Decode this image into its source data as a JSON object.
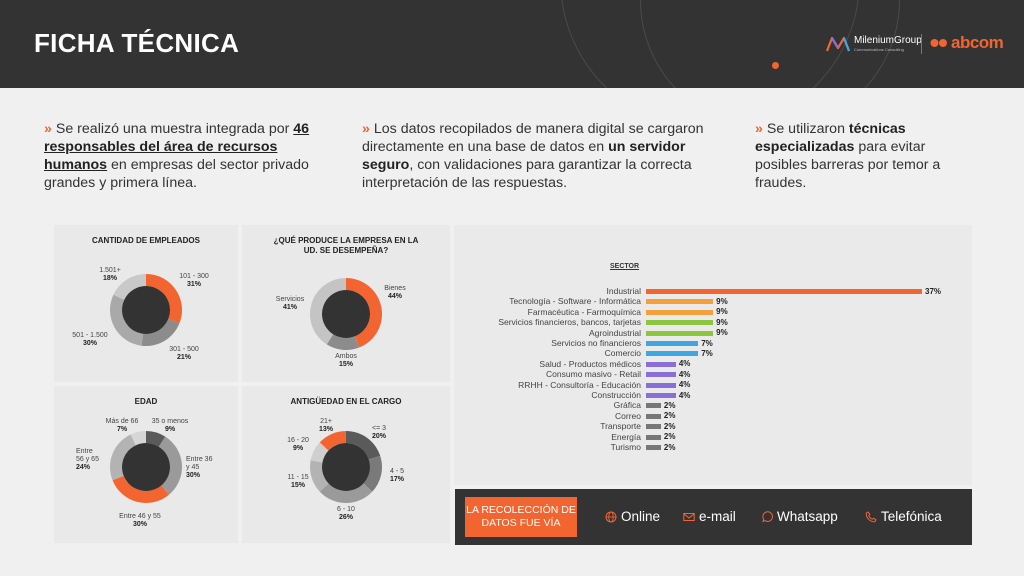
{
  "header": {
    "title": "FICHA TÉCNICA",
    "logo1_name": "MileniumGroup",
    "logo1_sub": "Communications Consulting",
    "logo2_name": "abcom"
  },
  "bullets": [
    {
      "parts": [
        {
          "t": "Se realizó una muestra integrada por ",
          "s": ""
        },
        {
          "t": "46 responsables del área de recursos humanos",
          "s": "bu"
        },
        {
          "t": " en empresas del sector privado grandes y primera línea.",
          "s": ""
        }
      ]
    },
    {
      "parts": [
        {
          "t": "Los datos recopilados de manera digital se cargaron directamente en una base de datos en ",
          "s": ""
        },
        {
          "t": "un servidor seguro",
          "s": "b"
        },
        {
          "t": ", con validaciones para garantizar la correcta interpretación de las respuestas.",
          "s": ""
        }
      ]
    },
    {
      "parts": [
        {
          "t": "Se utilizaron ",
          "s": ""
        },
        {
          "t": "técnicas especializadas",
          "s": "b"
        },
        {
          "t": " para evitar posibles barreras por temor a fraudes.",
          "s": ""
        }
      ]
    }
  ],
  "colors": {
    "accent": "#f26531",
    "dark": "#333333",
    "donut_center": "#333333"
  },
  "chart_data": [
    {
      "type": "pie",
      "title": "CANTIDAD DE EMPLEADOS",
      "slices": [
        {
          "label": "101 - 300",
          "value": 31,
          "display": "31%",
          "color": "#f26531"
        },
        {
          "label": "301 - 500",
          "value": 21,
          "display": "21%",
          "color": "#8c8c8c"
        },
        {
          "label": "501 - 1.500",
          "value": 30,
          "display": "30%",
          "color": "#a9a9a9"
        },
        {
          "label": "1.501+",
          "value": 18,
          "display": "18%",
          "color": "#c9c9c9"
        }
      ]
    },
    {
      "type": "pie",
      "title": "¿QUÉ PRODUCE LA EMPRESA EN LA UD. SE DESEMPEÑA?",
      "slices": [
        {
          "label": "Bienes",
          "value": 44,
          "display": "44%",
          "color": "#f26531"
        },
        {
          "label": "Ambos",
          "value": 15,
          "display": "15%",
          "color": "#8c8c8c"
        },
        {
          "label": "Servicios",
          "value": 41,
          "display": "41%",
          "color": "#c4c4c4"
        }
      ]
    },
    {
      "type": "pie",
      "title": "EDAD",
      "slices": [
        {
          "label": "35 o menos",
          "value": 9,
          "display": "9%",
          "color": "#5a5a5a"
        },
        {
          "label": "Entre 36 y 45",
          "value": 30,
          "display": "30%",
          "color": "#9a9a9a"
        },
        {
          "label": "Entre 46 y 55",
          "value": 30,
          "display": "30%",
          "color": "#f26531"
        },
        {
          "label": "Entre 56 y 65",
          "value": 24,
          "display": "24%",
          "color": "#b3b3b3"
        },
        {
          "label": "Más de 66",
          "value": 7,
          "display": "7%",
          "color": "#d6d6d6"
        }
      ]
    },
    {
      "type": "pie",
      "title": "ANTIGÜEDAD EN EL CARGO",
      "slices": [
        {
          "label": "<= 3",
          "value": 20,
          "display": "20%",
          "color": "#5a5a5a"
        },
        {
          "label": "4 - 5",
          "value": 17,
          "display": "17%",
          "color": "#7a7a7a"
        },
        {
          "label": "6 - 10",
          "value": 26,
          "display": "26%",
          "color": "#9a9a9a"
        },
        {
          "label": "11 - 15",
          "value": 15,
          "display": "15%",
          "color": "#b3b3b3"
        },
        {
          "label": "16 - 20",
          "value": 9,
          "display": "9%",
          "color": "#cfcfcf"
        },
        {
          "label": "21+",
          "value": 13,
          "display": "13%",
          "color": "#f26531"
        }
      ]
    },
    {
      "type": "bar",
      "orientation": "horizontal",
      "title": "SECTOR",
      "xlim": [
        0,
        37
      ],
      "categories": [
        "Industrial",
        "Tecnología - Software - Informática",
        "Farmacéutica - Farmoquímica",
        "Servicios financieros, bancos, tarjetas",
        "Agroindustrial",
        "Servicios no financieros",
        "Comercio",
        "Salud - Productos médicos",
        "Consumo masivo - Retail",
        "RRHH - Consultoría - Educación",
        "Construcción",
        "Gráfica",
        "Correo",
        "Transporte",
        "Energía",
        "Turismo"
      ],
      "values": [
        37,
        9,
        9,
        9,
        9,
        7,
        7,
        4,
        4,
        4,
        4,
        2,
        2,
        2,
        2,
        2
      ],
      "labels": [
        "37%",
        "9%",
        "9%",
        "9%",
        "9%",
        "7%",
        "7%",
        "4%",
        "4%",
        "4%",
        "4%",
        "2%",
        "2%",
        "2%",
        "2%",
        "2%"
      ],
      "colors": [
        "#f26531",
        "#f5a03c",
        "#f5a03c",
        "#8cc63f",
        "#8cc63f",
        "#3fa7e0",
        "#3fa7e0",
        "#8a6fd6",
        "#8a6fd6",
        "#8a6fd6",
        "#8a6fd6",
        "#777777",
        "#777777",
        "#777777",
        "#777777",
        "#777777"
      ]
    }
  ],
  "footer": {
    "label": "LA RECOLECCIÓN DE DATOS FUE VÍA",
    "methods": [
      {
        "label": "Online",
        "icon": "globe-icon"
      },
      {
        "label": "e-mail",
        "icon": "envelope-icon"
      },
      {
        "label": "Whatsapp",
        "icon": "whatsapp-icon"
      },
      {
        "label": "Telefónica",
        "icon": "phone-icon"
      }
    ]
  }
}
